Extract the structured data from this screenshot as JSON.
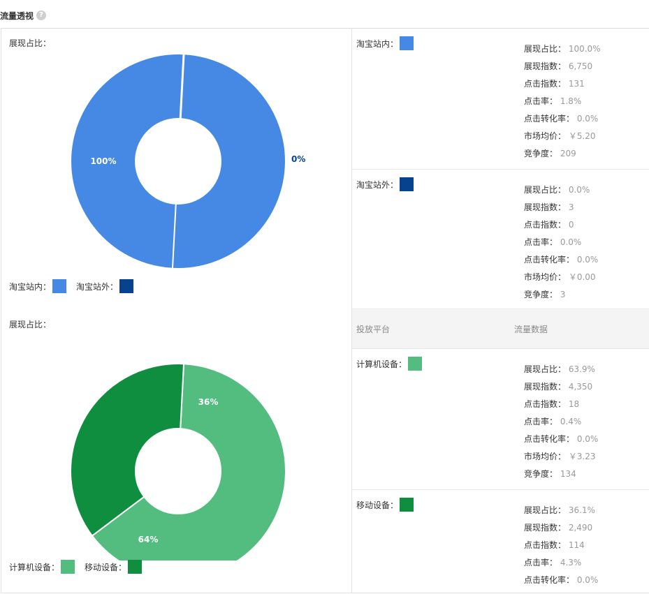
{
  "header": {
    "title": "流量透视",
    "help_icon": "help-icon"
  },
  "colors": {
    "taobao_in": "#4689E5",
    "taobao_out": "#07428F",
    "pc": "#53BD80",
    "mobile": "#0E8E3E"
  },
  "charts": [
    {
      "label": "展现占比：",
      "legend": [
        {
          "label": "淘宝站内：",
          "color": "#4689E5"
        },
        {
          "label": "淘宝站外：",
          "color": "#07428F"
        }
      ]
    },
    {
      "label": "展现占比：",
      "legend": [
        {
          "label": "计算机设备：",
          "color": "#53BD80"
        },
        {
          "label": "移动设备：",
          "color": "#0E8E3E"
        }
      ]
    }
  ],
  "chart_data": [
    {
      "type": "pie",
      "categories": [
        "淘宝站内",
        "淘宝站外"
      ],
      "values": [
        100.0,
        0.0
      ],
      "data_labels": [
        "100%",
        "0%"
      ],
      "colors": [
        "#4689E5",
        "#07428F"
      ]
    },
    {
      "type": "pie",
      "categories": [
        "计算机设备",
        "移动设备"
      ],
      "values": [
        63.9,
        36.1
      ],
      "data_labels": [
        "64%",
        "36%"
      ],
      "colors": [
        "#53BD80",
        "#0E8E3E"
      ]
    }
  ],
  "channels": {
    "taobao_in": {
      "name": "淘宝站内：",
      "color": "#4689E5",
      "metrics": [
        {
          "label": "展现占比：",
          "value": "100.0%"
        },
        {
          "label": "展现指数：",
          "value": "6,750"
        },
        {
          "label": "点击指数：",
          "value": "131"
        },
        {
          "label": "点击率：",
          "value": "1.8%"
        },
        {
          "label": "点击转化率：",
          "value": "0.0%"
        },
        {
          "label": "市场均价：",
          "value": "￥5.20"
        },
        {
          "label": "竞争度：",
          "value": "209"
        }
      ]
    },
    "taobao_out": {
      "name": "淘宝站外：",
      "color": "#07428F",
      "metrics": [
        {
          "label": "展现占比：",
          "value": "0.0%"
        },
        {
          "label": "展现指数：",
          "value": "3"
        },
        {
          "label": "点击指数：",
          "value": "0"
        },
        {
          "label": "点击率：",
          "value": "0.0%"
        },
        {
          "label": "点击转化率：",
          "value": "0.0%"
        },
        {
          "label": "市场均价：",
          "value": "￥0.00"
        },
        {
          "label": "竞争度：",
          "value": "3"
        }
      ]
    }
  },
  "platform_header": {
    "col1": "投放平台",
    "col2": "流量数据"
  },
  "devices": {
    "pc": {
      "name": "计算机设备：",
      "color": "#53BD80",
      "metrics": [
        {
          "label": "展现占比：",
          "value": "63.9%"
        },
        {
          "label": "展现指数：",
          "value": "4,350"
        },
        {
          "label": "点击指数：",
          "value": "18"
        },
        {
          "label": "点击率：",
          "value": "0.4%"
        },
        {
          "label": "点击转化率：",
          "value": "0.0%"
        },
        {
          "label": "市场均价：",
          "value": "￥3.23"
        },
        {
          "label": "竞争度：",
          "value": "134"
        }
      ]
    },
    "mobile": {
      "name": "移动设备：",
      "color": "#0E8E3E",
      "metrics": [
        {
          "label": "展现占比：",
          "value": "36.1%"
        },
        {
          "label": "展现指数：",
          "value": "2,490"
        },
        {
          "label": "点击指数：",
          "value": "114"
        },
        {
          "label": "点击率：",
          "value": "4.3%"
        },
        {
          "label": "点击转化率：",
          "value": "0.0%"
        }
      ]
    }
  }
}
